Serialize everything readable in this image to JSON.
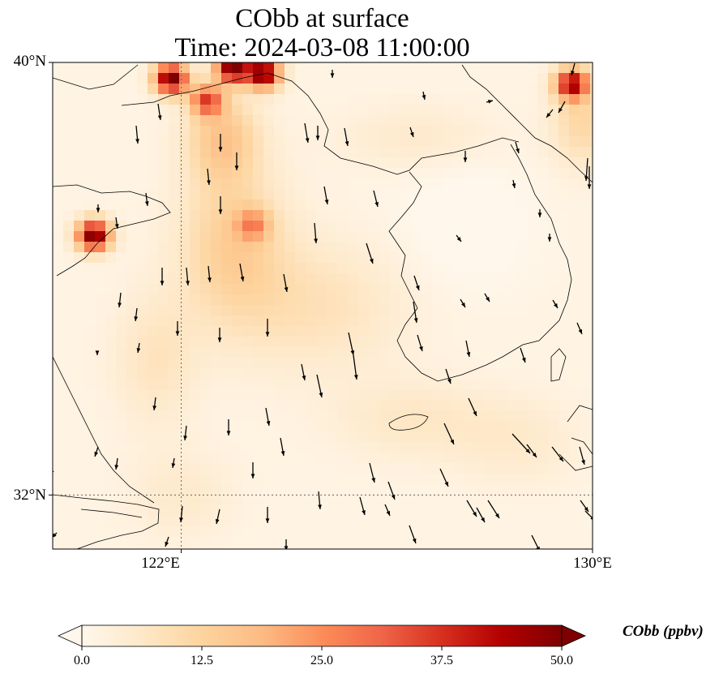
{
  "figure": {
    "title_line1": "CObb at surface",
    "title_line2": "Time: 2024-03-08 11:00:00"
  },
  "map": {
    "type": "filled contour map with wind vectors",
    "extent": {
      "lon_min": 119.5,
      "lon_max": 130.0,
      "lat_min": 31.0,
      "lat_max": 40.0
    },
    "lat_ticks": [
      {
        "value": 40,
        "label": "40°N"
      },
      {
        "value": 32,
        "label": "32°N"
      }
    ],
    "lon_ticks": [
      {
        "value": 122,
        "label": "122°E"
      },
      {
        "value": 130,
        "label": "130°E"
      }
    ],
    "gridlines": "dotted at 122°E and 32°N",
    "features": [
      "coastlines",
      "wind vectors"
    ]
  },
  "chart_data": {
    "type": "heatmap",
    "variable": "CObb",
    "units": "ppbv",
    "colormap": "OrRd",
    "vmin": 0.0,
    "vmax": 50.0,
    "extend": "both",
    "hotspots": [
      {
        "lon": 121.8,
        "lat": 39.7,
        "value": 50
      },
      {
        "lon": 123.0,
        "lat": 39.9,
        "value": 50
      },
      {
        "lon": 123.6,
        "lat": 39.8,
        "value": 50
      },
      {
        "lon": 122.5,
        "lat": 39.3,
        "value": 30
      },
      {
        "lon": 120.3,
        "lat": 36.8,
        "value": 50
      },
      {
        "lon": 129.6,
        "lat": 39.6,
        "value": 42
      },
      {
        "lon": 123.4,
        "lat": 37.0,
        "value": 17
      }
    ]
  },
  "colorbar": {
    "label": "CObb (ppbv)",
    "ticks": [
      "0.0",
      "12.5",
      "25.0",
      "37.5",
      "50.0"
    ],
    "colors": [
      "#fff7ec",
      "#fee8c8",
      "#fdd49e",
      "#fdbb84",
      "#fc8d59",
      "#ef6548",
      "#d7301f",
      "#b30000",
      "#7f0000"
    ]
  }
}
